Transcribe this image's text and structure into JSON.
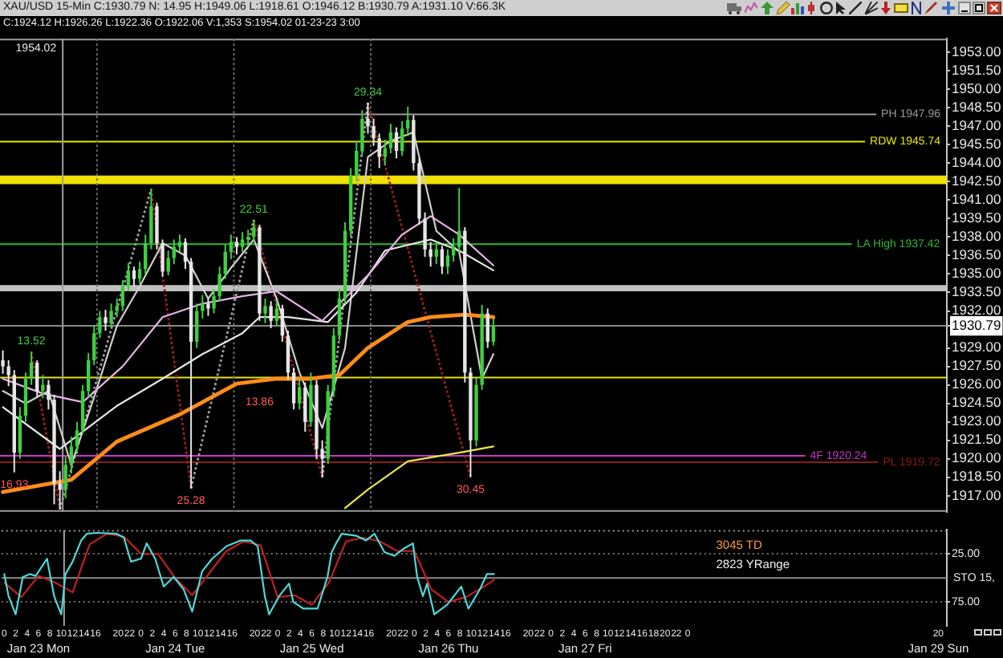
{
  "chart_data": [
    {
      "type": "candlestick",
      "title": "XAU/USD 15-Min C:1930.79 N: 14.95 H:1949.06 L:1918.61 O:1946.12 B:1930.79 A:1931.10 V:66.3K",
      "subtitle": "C:1924.12 H:1926.26 L:1922.36 O:1922.06 V:1,353 S:1954.02 01-23-23 3:00",
      "x": [
        "--01-23T00:00",
        "--01-23T01:00",
        "--01-23T02:00",
        "--01-23T03:00",
        "--01-23T04:00",
        "--01-23T05:00",
        "--01-23T06:00",
        "--01-23T07:00",
        "--01-23T08:00",
        "--01-23T09:00",
        "--01-23T10:00",
        "--01-23T11:00",
        "--01-23T12:00",
        "--01-23T13:00",
        "--01-23T14:00",
        "--01-23T15:00",
        "--01-23T16:00",
        "--01-23T17:00",
        "--01-23T18:00",
        "--01-23T19:00",
        "--01-23T20:00",
        "--01-23T21:00",
        "--01-23T22:00",
        "--01-23T23:00",
        "--01-24T00:00",
        "--01-24T01:00",
        "--01-24T02:00",
        "--01-24T03:00",
        "--01-24T04:00",
        "--01-24T05:00",
        "--01-24T06:00",
        "--01-24T07:00",
        "--01-24T08:00",
        "--01-24T09:00",
        "--01-24T10:00",
        "--01-24T11:00",
        "--01-24T12:00",
        "--01-24T13:00",
        "--01-24T14:00",
        "--01-24T15:00",
        "--01-24T16:00",
        "--01-24T17:00",
        "--01-24T18:00",
        "--01-24T19:00",
        "--01-24T20:00",
        "--01-24T21:00",
        "--01-24T22:00",
        "--01-24T23:00",
        "--01-25T00:00",
        "--01-25T01:00",
        "--01-25T02:00",
        "--01-25T03:00",
        "--01-25T04:00",
        "--01-25T05:00",
        "--01-25T06:00",
        "--01-25T07:00",
        "--01-25T08:00",
        "--01-25T09:00",
        "--01-25T10:00",
        "--01-25T11:00",
        "--01-25T12:00",
        "--01-25T13:00",
        "--01-25T14:00",
        "--01-25T15:00",
        "--01-25T16:00",
        "--01-25T17:00",
        "--01-25T18:00",
        "--01-25T19:00",
        "--01-25T20:00",
        "--01-25T21:00",
        "--01-25T22:00",
        "--01-25T23:00",
        "--01-26T00:00",
        "--01-26T01:00",
        "--01-26T02:00",
        "--01-26T03:00",
        "--01-26T04:00",
        "--01-26T05:00",
        "--01-26T06:00",
        "--01-26T07:00",
        "--01-26T08:00",
        "--01-26T09:00",
        "--01-26T10:00",
        "--01-26T11:00",
        "--01-26T12:00",
        "--01-26T13:00",
        "--01-26T14:00"
      ],
      "ohlc": [
        [
          1928.0,
          1928.8,
          1926.9,
          1927.5
        ],
        [
          1927.5,
          1928.0,
          1925.9,
          1926.8
        ],
        [
          1926.8,
          1927.2,
          1918.9,
          1920.5
        ],
        [
          1920.5,
          1924.2,
          1920.0,
          1923.5
        ],
        [
          1923.5,
          1927.0,
          1923.0,
          1926.5
        ],
        [
          1926.5,
          1928.7,
          1926.0,
          1927.8
        ],
        [
          1927.8,
          1928.0,
          1925.0,
          1925.5
        ],
        [
          1925.5,
          1926.8,
          1924.9,
          1926.0
        ],
        [
          1926.0,
          1926.4,
          1924.0,
          1924.8
        ],
        [
          1924.8,
          1925.2,
          1916.3,
          1918.0
        ],
        [
          1918.0,
          1919.0,
          1915.9,
          1917.5
        ],
        [
          1917.5,
          1920.2,
          1916.8,
          1919.5
        ],
        [
          1919.5,
          1921.8,
          1918.8,
          1921.0
        ],
        [
          1921.0,
          1923.0,
          1920.4,
          1922.3
        ],
        [
          1922.3,
          1926.0,
          1922.0,
          1925.5
        ],
        [
          1925.5,
          1928.6,
          1925.0,
          1928.0
        ],
        [
          1928.0,
          1930.8,
          1927.6,
          1930.2
        ],
        [
          1930.2,
          1932.0,
          1929.8,
          1931.5
        ],
        [
          1931.5,
          1932.1,
          1930.4,
          1931.0
        ],
        [
          1931.0,
          1932.6,
          1930.6,
          1932.0
        ],
        [
          1932.0,
          1933.0,
          1931.5,
          1932.4
        ],
        [
          1932.4,
          1934.5,
          1932.0,
          1934.0
        ],
        [
          1934.0,
          1935.9,
          1933.6,
          1935.3
        ],
        [
          1935.3,
          1935.6,
          1934.0,
          1934.6
        ],
        [
          1934.6,
          1936.0,
          1934.2,
          1935.4
        ],
        [
          1935.4,
          1938.2,
          1935.0,
          1937.5
        ],
        [
          1937.5,
          1941.9,
          1937.0,
          1940.5
        ],
        [
          1940.5,
          1940.8,
          1937.0,
          1937.5
        ],
        [
          1937.5,
          1937.8,
          1934.8,
          1935.2
        ],
        [
          1935.2,
          1936.9,
          1934.9,
          1936.3
        ],
        [
          1936.3,
          1937.8,
          1935.8,
          1937.2
        ],
        [
          1937.2,
          1938.2,
          1936.8,
          1937.6
        ],
        [
          1937.6,
          1937.9,
          1935.4,
          1936.0
        ],
        [
          1936.0,
          1936.3,
          1917.6,
          1929.5
        ],
        [
          1929.5,
          1932.6,
          1929.0,
          1932.0
        ],
        [
          1932.0,
          1933.3,
          1931.4,
          1932.6
        ],
        [
          1932.6,
          1933.0,
          1931.6,
          1932.2
        ],
        [
          1932.2,
          1933.8,
          1931.8,
          1933.2
        ],
        [
          1933.2,
          1935.6,
          1932.8,
          1935.0
        ],
        [
          1935.0,
          1937.4,
          1934.6,
          1936.8
        ],
        [
          1936.8,
          1938.2,
          1936.2,
          1937.6
        ],
        [
          1937.6,
          1938.0,
          1936.6,
          1937.2
        ],
        [
          1937.2,
          1938.4,
          1936.8,
          1937.8
        ],
        [
          1937.8,
          1938.6,
          1937.2,
          1938.0
        ],
        [
          1938.0,
          1939.4,
          1937.6,
          1938.8
        ],
        [
          1938.8,
          1939.0,
          1931.2,
          1931.8
        ],
        [
          1931.8,
          1933.0,
          1931.0,
          1932.4
        ],
        [
          1932.4,
          1932.8,
          1930.6,
          1931.2
        ],
        [
          1931.2,
          1932.8,
          1930.8,
          1932.2
        ],
        [
          1932.2,
          1932.5,
          1929.5,
          1930.0
        ],
        [
          1930.0,
          1930.4,
          1926.4,
          1927.0
        ],
        [
          1927.0,
          1927.4,
          1924.0,
          1924.5
        ],
        [
          1924.5,
          1926.4,
          1924.0,
          1925.8
        ],
        [
          1925.8,
          1926.2,
          1922.2,
          1923.0
        ],
        [
          1923.0,
          1927.0,
          1922.6,
          1926.0
        ],
        [
          1926.0,
          1926.4,
          1920.0,
          1920.8
        ],
        [
          1920.8,
          1921.5,
          1918.5,
          1920.0
        ],
        [
          1920.0,
          1926.0,
          1919.6,
          1925.5
        ],
        [
          1925.5,
          1930.6,
          1925.0,
          1930.0
        ],
        [
          1930.0,
          1933.8,
          1929.6,
          1933.0
        ],
        [
          1933.0,
          1939.2,
          1932.6,
          1938.5
        ],
        [
          1938.5,
          1943.6,
          1938.0,
          1943.0
        ],
        [
          1943.0,
          1945.8,
          1942.5,
          1945.0
        ],
        [
          1945.0,
          1948.3,
          1944.6,
          1947.6
        ],
        [
          1947.6,
          1948.9,
          1946.4,
          1947.0
        ],
        [
          1947.0,
          1947.6,
          1945.4,
          1946.0
        ],
        [
          1946.0,
          1946.4,
          1943.6,
          1944.5
        ],
        [
          1944.5,
          1945.9,
          1943.8,
          1945.2
        ],
        [
          1945.2,
          1947.2,
          1944.8,
          1946.5
        ],
        [
          1946.5,
          1946.9,
          1944.4,
          1945.0
        ],
        [
          1945.0,
          1947.4,
          1944.6,
          1946.8
        ],
        [
          1946.8,
          1948.6,
          1946.2,
          1947.5
        ],
        [
          1947.5,
          1947.9,
          1943.4,
          1944.0
        ],
        [
          1944.0,
          1944.4,
          1939.0,
          1939.5
        ],
        [
          1939.5,
          1940.0,
          1936.4,
          1937.0
        ],
        [
          1937.0,
          1937.6,
          1935.6,
          1936.4
        ],
        [
          1936.4,
          1937.6,
          1935.8,
          1937.0
        ],
        [
          1937.0,
          1937.3,
          1935.0,
          1935.6
        ],
        [
          1935.6,
          1937.0,
          1935.0,
          1936.5
        ],
        [
          1936.5,
          1937.9,
          1936.0,
          1937.2
        ],
        [
          1937.2,
          1942.0,
          1936.8,
          1938.5
        ],
        [
          1938.5,
          1938.8,
          1926.2,
          1927.0
        ],
        [
          1927.0,
          1927.4,
          1918.5,
          1921.5
        ],
        [
          1921.5,
          1926.6,
          1921.0,
          1926.0
        ],
        [
          1926.0,
          1932.5,
          1925.6,
          1931.8
        ],
        [
          1931.8,
          1932.2,
          1929.0,
          1929.5
        ],
        [
          1929.5,
          1931.4,
          1929.2,
          1930.79
        ]
      ],
      "colors": [
        "#e6e6e6",
        "#e6e6e6",
        "#e6e6e6",
        "#3fcf3f",
        "#3fcf3f",
        "#3fcf3f",
        "#e6e6e6",
        "#3fcf3f",
        "#e6e6e6",
        "#e6e6e6",
        "#e6e6e6",
        "#3fcf3f",
        "#3fcf3f",
        "#3fcf3f",
        "#3fcf3f",
        "#3fcf3f",
        "#3fcf3f",
        "#3fcf3f",
        "#e6e6e6",
        "#3fcf3f",
        "#3fcf3f",
        "#3fcf3f",
        "#3fcf3f",
        "#e6e6e6",
        "#3fcf3f",
        "#3fcf3f",
        "#3fcf3f",
        "#e6e6e6",
        "#e6e6e6",
        "#3fcf3f",
        "#3fcf3f",
        "#3fcf3f",
        "#e6e6e6",
        "#e6e6e6",
        "#3fcf3f",
        "#3fcf3f",
        "#e6e6e6",
        "#3fcf3f",
        "#3fcf3f",
        "#3fcf3f",
        "#3fcf3f",
        "#e6e6e6",
        "#3fcf3f",
        "#3fcf3f",
        "#3fcf3f",
        "#e6e6e6",
        "#3fcf3f",
        "#e6e6e6",
        "#3fcf3f",
        "#e6e6e6",
        "#e6e6e6",
        "#e6e6e6",
        "#3fcf3f",
        "#e6e6e6",
        "#3fcf3f",
        "#e6e6e6",
        "#e6e6e6",
        "#3fcf3f",
        "#3fcf3f",
        "#3fcf3f",
        "#3fcf3f",
        "#3fcf3f",
        "#3fcf3f",
        "#3fcf3f",
        "#e6e6e6",
        "#e6e6e6",
        "#e6e6e6",
        "#3fcf3f",
        "#3fcf3f",
        "#e6e6e6",
        "#3fcf3f",
        "#3fcf3f",
        "#e6e6e6",
        "#e6e6e6",
        "#e6e6e6",
        "#e6e6e6",
        "#3fcf3f",
        "#e6e6e6",
        "#3fcf3f",
        "#3fcf3f",
        "#3fcf3f",
        "#e6e6e6",
        "#e6e6e6",
        "#3fcf3f",
        "#3fcf3f",
        "#e6e6e6",
        "#3fcf3f"
      ],
      "series": [
        {
          "type": "line",
          "color": "#ff8c1a",
          "x": [
            "--01-23T00:00",
            "--01-23T12:00",
            "--01-23T20:00",
            "--01-24T07:00",
            "--01-24T17:00",
            "--01-25T00:00",
            "--01-25T06:00",
            "--01-25T11:00",
            "--01-25T16:00",
            "--01-25T23:00",
            "--01-26T03:00",
            "--01-26T09:00",
            "--01-26T14:00"
          ],
          "values": [
            1917.3,
            1918.3,
            1921.4,
            1923.6,
            1926.1,
            1926.5,
            1926.5,
            1926.8,
            1929.0,
            1931.1,
            1931.5,
            1931.7,
            1931.5
          ]
        },
        {
          "type": "line",
          "color": "#e6b3e6",
          "x": [
            "--01-23T00:00",
            "--01-23T07:00",
            "--01-23T14:00",
            "--01-23T21:00",
            "--01-24T04:00",
            "--01-24T11:00",
            "--01-24T18:00",
            "--01-25T00:00",
            "--01-25T08:00",
            "--01-25T16:00",
            "--01-25T22:00",
            "--01-26T03:00",
            "--01-26T08:00",
            "--01-26T14:00"
          ],
          "values": [
            1926.5,
            1925.3,
            1924.6,
            1927.5,
            1931.5,
            1932.6,
            1933.2,
            1933.6,
            1931.2,
            1934.9,
            1938.2,
            1939.7,
            1938.2,
            1935.7
          ]
        },
        {
          "type": "line",
          "color": "#e6e6e6",
          "x": [
            "--01-23T00:00",
            "--01-23T10:00",
            "--01-23T20:00",
            "--01-24T04:00",
            "--01-24T11:00",
            "--01-24T18:00",
            "--01-24T21:00",
            "--01-25T02:00",
            "--01-25T09:00",
            "--01-25T14:00",
            "--01-25T19:00",
            "--01-26T03:00",
            "--01-26T08:00",
            "--01-26T14:00"
          ],
          "values": [
            1924.2,
            1920.8,
            1924.3,
            1926.5,
            1928.5,
            1930.2,
            1931.5,
            1931.5,
            1931.1,
            1933.5,
            1936.9,
            1937.8,
            1936.9,
            1935.3
          ]
        },
        {
          "type": "line",
          "color": "#cfcfcf",
          "x": [
            "--01-23T00:00",
            "--01-23T04:00",
            "--01-23T08:00",
            "--01-23T12:00",
            "--01-23T16:00",
            "--01-23T20:00",
            "--01-24T00:00",
            "--01-24T04:00",
            "--01-24T08:00",
            "--01-24T12:00",
            "--01-24T16:00",
            "--01-24T20:00",
            "--01-25T00:00",
            "--01-25T04:00",
            "--01-25T08:00",
            "--01-25T12:00",
            "--01-25T16:00",
            "--01-25T20:00",
            "--01-26T00:00",
            "--01-26T04:00",
            "--01-26T08:00",
            "--01-26T12:00",
            "--01-26T14:00"
          ],
          "values": [
            1925.5,
            1924.5,
            1925.5,
            1919.5,
            1925.0,
            1930.8,
            1934.0,
            1937.5,
            1936.5,
            1933.0,
            1935.5,
            1937.8,
            1933.0,
            1927.0,
            1922.5,
            1929.0,
            1944.5,
            1945.8,
            1946.5,
            1938.5,
            1936.8,
            1926.5,
            1928.5
          ]
        },
        {
          "type": "line",
          "color": "#e8e84a",
          "x": [
            "--01-25T12:00",
            "--01-25T16:00",
            "--01-25T23:00",
            "--01-26T08:00",
            "--01-26T14:00"
          ],
          "values": [
            1916.0,
            1917.5,
            1919.8,
            1920.5,
            1921.0
          ]
        },
        {
          "type": "line",
          "color": "#9c9c9c",
          "line_style": "dotted",
          "x": [
            "--01-23T10:00",
            "--01-24T02:00",
            "--01-24T06:00",
            "--01-24T09:00",
            "--01-24T20:00",
            "--01-25T02:00",
            "--01-25T08:00",
            "--01-25T16:00"
          ],
          "values": [
            1915.9,
            1941.9,
            null,
            1917.6,
            1939.4,
            null,
            1918.5,
            1948.9
          ]
        },
        {
          "type": "line",
          "color": "#a02020",
          "line_style": "dotted",
          "x": [
            "--01-23T05:00",
            "--01-23T10:00",
            "--01-23T18:00",
            "--01-24T02:00",
            "--01-24T09:00",
            "--01-24T14:00",
            "--01-24T20:00",
            "--01-25T08:00",
            "--01-25T12:00",
            "--01-25T16:00",
            "--01-26T10:00"
          ],
          "values": [
            1928.7,
            1915.9,
            null,
            1941.9,
            1917.6,
            null,
            1939.4,
            1918.5,
            null,
            1948.9,
            1918.5
          ]
        }
      ],
      "xlim": [
        "--01-22T23:30",
        "--01-29T21:30"
      ],
      "ylim": [
        1915.7,
        1954.1
      ],
      "yticks": [
        {
          "value": 1917,
          "label": "1917.00"
        },
        {
          "value": 1918.5,
          "label": "1918.50"
        },
        {
          "value": 1920,
          "label": "1920.00"
        },
        {
          "value": 1921.5,
          "label": "1921.50"
        },
        {
          "value": 1923,
          "label": "1923.00"
        },
        {
          "value": 1924.5,
          "label": "1924.50"
        },
        {
          "value": 1926,
          "label": "1926.00"
        },
        {
          "value": 1927.5,
          "label": "1927.50"
        },
        {
          "value": 1929,
          "label": "1929.00"
        },
        1930.79,
        {
          "value": 1932,
          "label": "1932.00"
        },
        {
          "value": 1933.5,
          "label": "1933.50"
        },
        {
          "value": 1935,
          "label": "1935.00"
        },
        {
          "value": 1936.5,
          "label": "1936.50"
        },
        {
          "value": 1938,
          "label": "1938.00"
        },
        {
          "value": 1939.5,
          "label": "1939.50"
        },
        {
          "value": 1941,
          "label": "1941.00"
        },
        {
          "value": 1942.5,
          "label": "1942.50"
        },
        {
          "value": 1944,
          "label": "1944.00"
        },
        {
          "value": 1945.5,
          "label": "1945.50"
        },
        {
          "value": 1947,
          "label": "1947.00"
        },
        {
          "value": 1948.5,
          "label": "1948.50"
        },
        {
          "value": 1950,
          "label": "1950.00"
        },
        {
          "value": 1951.5,
          "label": "1951.50"
        },
        {
          "value": 1953,
          "label": "1953.00"
        }
      ],
      "tick_labels": "y",
      "ref_lines": [
        {
          "axis": "y",
          "value": 1947.96,
          "label": "PH 1947.96",
          "color": "#9a9a9a"
        },
        {
          "axis": "y",
          "value": 1945.74,
          "label": "RDW 1945.74",
          "color": "#e6e600"
        },
        {
          "axis": "y",
          "value": 1937.42,
          "label": "LA High 1937.42",
          "color": "#2eb82e"
        },
        {
          "axis": "y",
          "value": 1930.79,
          "color": "#8c8c8c"
        },
        {
          "axis": "y",
          "value": 1926.6,
          "color": "#e6e600"
        },
        {
          "axis": "y",
          "value": 1919.72,
          "label": "PL 1919.72",
          "color": "#8b1a1a"
        },
        {
          "axis": "y",
          "value": 1920.24,
          "label": "4F 1920.24",
          "color": "#cc33cc"
        },
        {
          "axis": "x",
          "value": "--01-23T10:30",
          "color": "#a0a0a0"
        },
        {
          "axis": "x",
          "value": "--01-23T16:30",
          "color": "#6a6a6a",
          "line_style": "dotted"
        },
        {
          "axis": "x",
          "value": "--01-24T16:30",
          "color": "#6a6a6a",
          "line_style": "dotted"
        },
        {
          "axis": "x",
          "value": "--01-25T16:30",
          "color": "#6a6a6a",
          "line_style": "dotted"
        }
      ],
      "bands": [
        {
          "axis": "y",
          "from": 1942.3,
          "to": 1943.0,
          "color": "#f0e000"
        },
        {
          "axis": "y",
          "from": 1933.6,
          "to": 1934.1,
          "color": "#c0c0c0"
        }
      ],
      "annotations": [
        {
          "text": "1954.02",
          "x": "--01-23T10:30",
          "y": 1954.02
        },
        {
          "text": "16.93",
          "x": "--01-23T02:00",
          "y": 1918.9
        },
        {
          "text": "13.52",
          "x": "--01-23T05:00",
          "y": 1928.7
        },
        {
          "text": "25.28",
          "x": "--01-24T09:00",
          "y": 1917.6
        },
        {
          "text": "22.51",
          "x": "--01-24T20:00",
          "y": 1939.4
        },
        {
          "text": "13.86",
          "x": "--01-24T21:00",
          "y": 1925.6
        },
        {
          "text": "29.34",
          "x": "--01-25T16:00",
          "y": 1948.9
        },
        {
          "text": "30.45",
          "x": "--01-26T10:00",
          "y": 1918.5
        }
      ]
    },
    {
      "type": "line",
      "ylabel": "STO 15,",
      "series": [
        {
          "color": "#4fd8d8",
          "x": [
            "--01-23T00:00",
            "--01-23T00:45",
            "--01-23T02:00",
            "--01-23T03:15",
            "--01-23T04:30",
            "--01-23T05:30",
            "--01-23T07:30",
            "--01-23T08:45",
            "--01-23T10:00",
            "--01-23T10:45",
            "--01-23T12:00",
            "--01-23T13:30",
            "--01-23T14:30",
            "--01-23T16:15",
            "--01-23T19:45",
            "--01-23T21:00",
            "--01-23T22:15",
            "--01-24T00:00",
            "--01-24T01:00",
            "--01-24T02:30",
            "--01-24T04:00",
            "--01-24T05:45",
            "--01-24T07:30",
            "--01-24T09:00",
            "--01-24T10:45",
            "--01-24T12:30",
            "--01-24T15:00",
            "--01-24T17:30",
            "--01-24T19:15",
            "--01-24T20:30",
            "--01-24T21:45",
            "--01-24T22:30",
            "--01-25T00:15",
            "--01-25T02:00",
            "--01-25T02:45",
            "--01-25T04:30",
            "--01-25T07:00",
            "--01-25T08:45",
            "--01-25T09:30",
            "--01-25T10:15",
            "--01-25T11:15",
            "--01-25T13:45",
            "--01-25T15:30",
            "--01-25T17:00",
            "--01-25T18:45",
            "--01-25T20:30",
            "--01-25T22:00",
            "--01-25T23:45",
            "--01-26T00:30",
            "--01-26T01:30",
            "--01-26T02:15",
            "--01-26T03:30",
            "--01-26T05:45",
            "--01-26T08:15",
            "--01-26T09:30",
            "--01-26T11:30",
            "--01-26T12:45",
            "--01-26T14:00"
          ],
          "values": [
            46,
            69,
            88,
            49,
            46,
            48,
            30,
            69,
            88,
            46,
            33,
            11,
            4,
            3,
            4,
            8,
            33,
            30,
            14,
            30,
            59,
            49,
            62,
            85,
            43,
            30,
            17,
            11,
            11,
            17,
            69,
            88,
            69,
            56,
            75,
            82,
            82,
            49,
            23,
            14,
            4,
            6,
            11,
            4,
            23,
            27,
            20,
            14,
            49,
            69,
            56,
            88,
            78,
            59,
            82,
            62,
            46,
            46
          ]
        },
        {
          "color": "#c02020",
          "x": [
            "--01-23T00:00",
            "--01-23T03:00",
            "--01-23T06:00",
            "--01-23T09:00",
            "--01-23T12:00",
            "--01-23T15:00",
            "--01-23T18:00",
            "--01-23T21:00",
            "--01-24T00:00",
            "--01-24T03:00",
            "--01-24T06:00",
            "--01-24T09:00",
            "--01-24T12:00",
            "--01-24T15:00",
            "--01-24T18:00",
            "--01-24T21:00",
            "--01-25T00:00",
            "--01-25T03:00",
            "--01-25T06:00",
            "--01-25T09:00",
            "--01-25T12:00",
            "--01-25T15:00",
            "--01-25T18:00",
            "--01-25T21:00",
            "--01-26T00:00",
            "--01-26T03:00",
            "--01-26T06:00",
            "--01-26T09:00",
            "--01-26T12:00",
            "--01-26T14:00"
          ],
          "values": [
            55,
            70,
            48,
            55,
            65,
            15,
            4,
            7,
            25,
            25,
            50,
            68,
            45,
            22,
            12,
            16,
            70,
            68,
            78,
            55,
            12,
            8,
            12,
            22,
            22,
            62,
            75,
            70,
            60,
            52
          ]
        }
      ],
      "xlim": [
        "--01-22T23:30",
        "--01-29T21:30"
      ],
      "xticks": [
        {
          "value": "--01-23T00:00",
          "label": "0"
        },
        {
          "value": "--01-23T02:00",
          "label": "2"
        },
        {
          "value": "--01-23T04:00",
          "label": "4"
        },
        {
          "value": "--01-23T06:00",
          "label": "6"
        },
        {
          "value": "--01-23T08:00",
          "label": "8"
        },
        {
          "value": "--01-23T10:00",
          "label": "10"
        },
        {
          "value": "--01-23T12:00",
          "label": "12"
        },
        {
          "value": "--01-23T14:00",
          "label": "14"
        },
        {
          "value": "--01-23T16:00",
          "label": "16"
        },
        {
          "value": "--01-23T20:00",
          "label": "20"
        },
        {
          "value": "--01-23T22:00",
          "label": "22"
        },
        {
          "value": "--01-24T00:00",
          "label": "0"
        },
        {
          "value": "--01-24T02:00",
          "label": "2"
        },
        {
          "value": "--01-24T04:00",
          "label": "4"
        },
        {
          "value": "--01-24T06:00",
          "label": "6"
        },
        {
          "value": "--01-24T08:00",
          "label": "8"
        },
        {
          "value": "--01-24T10:00",
          "label": "10"
        },
        {
          "value": "--01-24T12:00",
          "label": "12"
        },
        {
          "value": "--01-24T14:00",
          "label": "14"
        },
        {
          "value": "--01-24T16:00",
          "label": "16"
        },
        {
          "value": "--01-24T20:00",
          "label": "20"
        },
        {
          "value": "--01-24T22:00",
          "label": "22"
        },
        {
          "value": "--01-25T00:00",
          "label": "0"
        },
        {
          "value": "--01-25T02:00",
          "label": "2"
        },
        {
          "value": "--01-25T04:00",
          "label": "4"
        },
        {
          "value": "--01-25T06:00",
          "label": "6"
        },
        {
          "value": "--01-25T08:00",
          "label": "8"
        },
        {
          "value": "--01-25T10:00",
          "label": "10"
        },
        {
          "value": "--01-25T12:00",
          "label": "12"
        },
        {
          "value": "--01-25T14:00",
          "label": "14"
        },
        {
          "value": "--01-25T16:00",
          "label": "16"
        },
        {
          "value": "--01-25T20:00",
          "label": "20"
        },
        {
          "value": "--01-25T22:00",
          "label": "22"
        },
        {
          "value": "--01-26T00:00",
          "label": "0"
        },
        {
          "value": "--01-26T02:00",
          "label": "2"
        },
        {
          "value": "--01-26T04:00",
          "label": "4"
        },
        {
          "value": "--01-26T06:00",
          "label": "6"
        },
        {
          "value": "--01-26T08:00",
          "label": "8"
        },
        {
          "value": "--01-26T10:00",
          "label": "10"
        },
        {
          "value": "--01-26T12:00",
          "label": "12"
        },
        {
          "value": "--01-26T14:00",
          "label": "14"
        },
        {
          "value": "--01-26T16:00",
          "label": "16"
        },
        {
          "value": "--01-26T20:00",
          "label": "20"
        },
        {
          "value": "--01-26T22:00",
          "label": "22"
        },
        {
          "value": "--01-27T00:00",
          "label": "0"
        },
        {
          "value": "--01-27T02:00",
          "label": "2"
        },
        {
          "value": "--01-27T04:00",
          "label": "4"
        },
        {
          "value": "--01-27T06:00",
          "label": "6"
        },
        {
          "value": "--01-27T08:00",
          "label": "8"
        },
        {
          "value": "--01-27T10:00",
          "label": "10"
        },
        {
          "value": "--01-27T12:00",
          "label": "12"
        },
        {
          "value": "--01-27T14:00",
          "label": "14"
        },
        {
          "value": "--01-27T16:00",
          "label": "16"
        },
        {
          "value": "--01-27T18:00",
          "label": "18"
        },
        {
          "value": "--01-27T20:00",
          "label": "20"
        },
        {
          "value": "--01-27T22:00",
          "label": "22"
        },
        {
          "value": "--01-28T00:00",
          "label": "0"
        },
        {
          "value": "--01-29T20:00",
          "label": "20"
        }
      ],
      "x2lim": [
        "--01-22T23:30",
        "--01-29T21:30"
      ],
      "x2ticks": [
        {
          "value": "--01-23T06:00",
          "label": "Jan 23 Mon"
        },
        {
          "value": "--01-24T06:00",
          "label": "Jan 24 Tue"
        },
        {
          "value": "--01-25T06:00",
          "label": "Jan 25 Wed"
        },
        {
          "value": "--01-26T06:00",
          "label": "Jan 26 Thu"
        },
        {
          "value": "--01-27T06:00",
          "label": "Jan 27 Fri"
        },
        {
          "value": "--01-29T20:00",
          "label": "Jan 29 Sun"
        }
      ],
      "ylim": [
        100,
        0
      ],
      "yticks": [
        {
          "value": 25,
          "label": "25.00"
        },
        {
          "value": 75,
          "label": "75.00"
        }
      ],
      "grid": "y",
      "ref_lines": [
        {
          "axis": "x",
          "value": "--01-23T10:30",
          "color": "#a0a0a0"
        },
        {
          "axis": "y",
          "value": 50,
          "color": "#8c8c8c"
        }
      ],
      "annotations": [
        "3045 TD",
        "2823 YRange"
      ]
    }
  ]
}
